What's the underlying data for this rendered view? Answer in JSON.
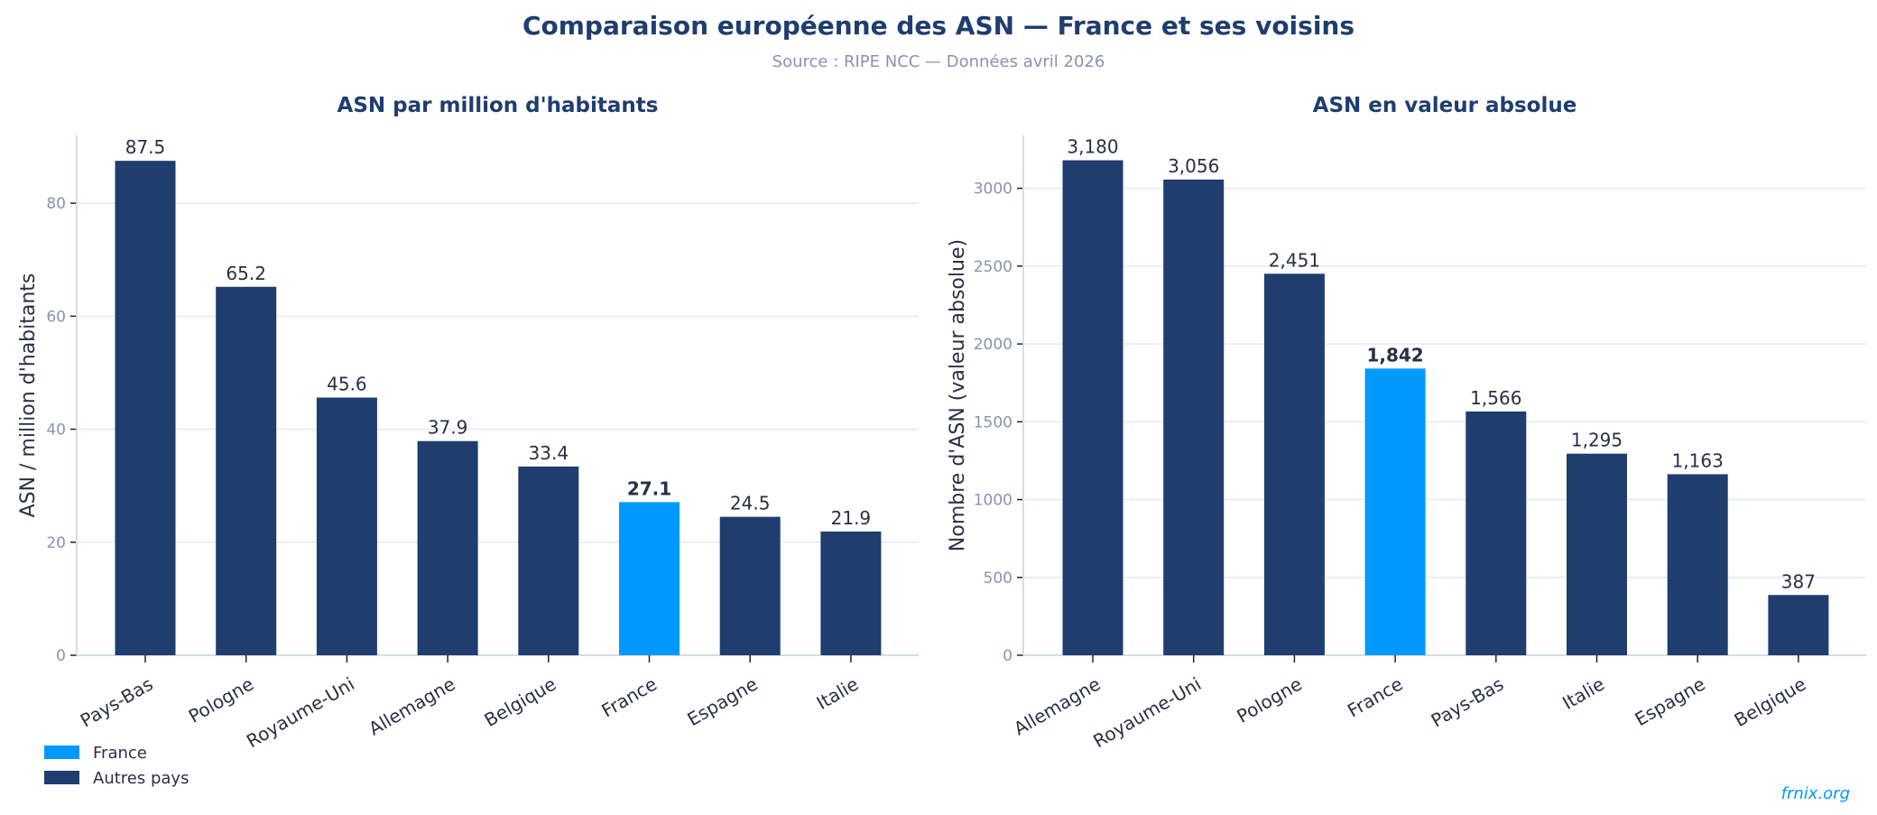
{
  "header": {
    "title": "Comparaison européenne des ASN — France et ses voisins",
    "subtitle": "Source : RIPE NCC — Données avril 2026"
  },
  "colors": {
    "highlight": "#0099ff",
    "default": "#1f3d6e",
    "grid": "#e3e9f5",
    "spine": "#d5ddeb",
    "tick_label": "#8a93ad",
    "text": "#2b2f44"
  },
  "legend": {
    "placement": "bottom-left",
    "items": [
      {
        "label": "France",
        "color": "#0099ff"
      },
      {
        "label": "Autres pays",
        "color": "#1f3d6e"
      }
    ]
  },
  "footer": {
    "credit": "frnix.org"
  },
  "chart_data": [
    {
      "type": "bar",
      "title": "ASN par million d'habitants",
      "xlabel": "",
      "ylabel": "ASN / million d'habitants",
      "ylim": [
        0,
        92
      ],
      "yticks": [
        0,
        20,
        40,
        60,
        80
      ],
      "grid": true,
      "highlight": "France",
      "categories": [
        "Pays-Bas",
        "Pologne",
        "Royaume-Uni",
        "Allemagne",
        "Belgique",
        "France",
        "Espagne",
        "Italie"
      ],
      "values": [
        87.5,
        65.2,
        45.6,
        37.9,
        33.4,
        27.1,
        24.5,
        21.9
      ],
      "value_labels": [
        "87.5",
        "65.2",
        "45.6",
        "37.9",
        "33.4",
        "27.1",
        "24.5",
        "21.9"
      ]
    },
    {
      "type": "bar",
      "title": "ASN en valeur absolue",
      "xlabel": "",
      "ylabel": "Nombre d'ASN (valeur absolue)",
      "ylim": [
        0,
        3340
      ],
      "yticks": [
        0,
        500,
        1000,
        1500,
        2000,
        2500,
        3000
      ],
      "grid": true,
      "highlight": "France",
      "categories": [
        "Allemagne",
        "Royaume-Uni",
        "Pologne",
        "France",
        "Pays-Bas",
        "Italie",
        "Espagne",
        "Belgique"
      ],
      "values": [
        3180,
        3056,
        2451,
        1842,
        1566,
        1295,
        1163,
        387
      ],
      "value_labels": [
        "3,180",
        "3,056",
        "2,451",
        "1,842",
        "1,566",
        "1,295",
        "1,163",
        "387"
      ]
    }
  ]
}
